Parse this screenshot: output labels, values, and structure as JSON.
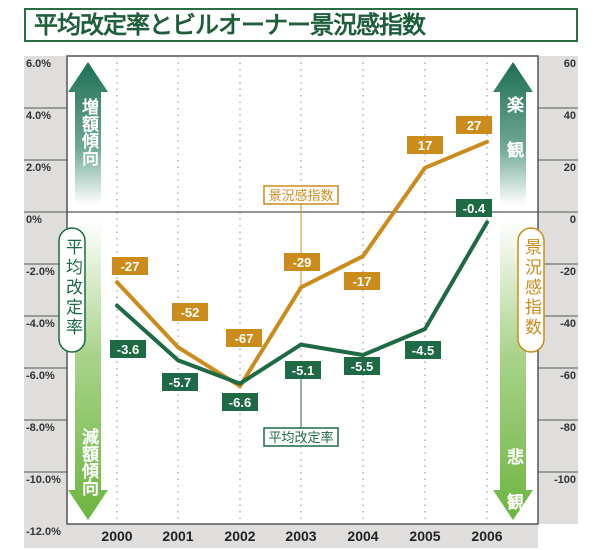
{
  "title": "平均改定率とビルオーナー景況感指数",
  "chart_data": {
    "type": "line",
    "title": "平均改定率とビルオーナー景況感指数",
    "categories": [
      "2000",
      "2001",
      "2002",
      "2003",
      "2004",
      "2005",
      "2006"
    ],
    "left_axis": {
      "ticks": [
        "6.0%",
        "4.0%",
        "2.0%",
        "0%",
        "-2.0%",
        "-4.0%",
        "-6.0%",
        "-8.0%",
        "-10.0%",
        "-12.0%"
      ],
      "range": [
        -12,
        6
      ]
    },
    "right_axis": {
      "ticks": [
        "60",
        "40",
        "20",
        "0",
        "-20",
        "-40",
        "-60",
        "-80",
        "-100"
      ],
      "range": [
        -120,
        60
      ]
    },
    "series": [
      {
        "name": "平均改定率",
        "axis": "left",
        "color": "#1d6a45",
        "values": [
          -3.6,
          -5.7,
          -6.6,
          -5.1,
          -5.5,
          -4.5,
          -0.4
        ],
        "labels": [
          "-3.6",
          "-5.7",
          "-6.6",
          "-5.1",
          "-5.5",
          "-4.5",
          "-0.4"
        ]
      },
      {
        "name": "景況感指数",
        "axis": "right",
        "color": "#cc8c1c",
        "values": [
          -27,
          -52,
          -67,
          -29,
          -17,
          17,
          27
        ],
        "labels": [
          "-27",
          "-52",
          "-67",
          "-29",
          "-17",
          "17",
          "27"
        ]
      }
    ],
    "left_arrows": {
      "up": "増額傾向",
      "down": "減額傾向",
      "axis_label": "平均改定率"
    },
    "right_arrows": {
      "up": "楽観",
      "down": "悲観",
      "axis_label": "景況感指数"
    },
    "grid": "vertical dotted",
    "colors": {
      "green": "#1d6a45",
      "orange": "#cc8c1c",
      "panel": "#e0dedc"
    }
  }
}
